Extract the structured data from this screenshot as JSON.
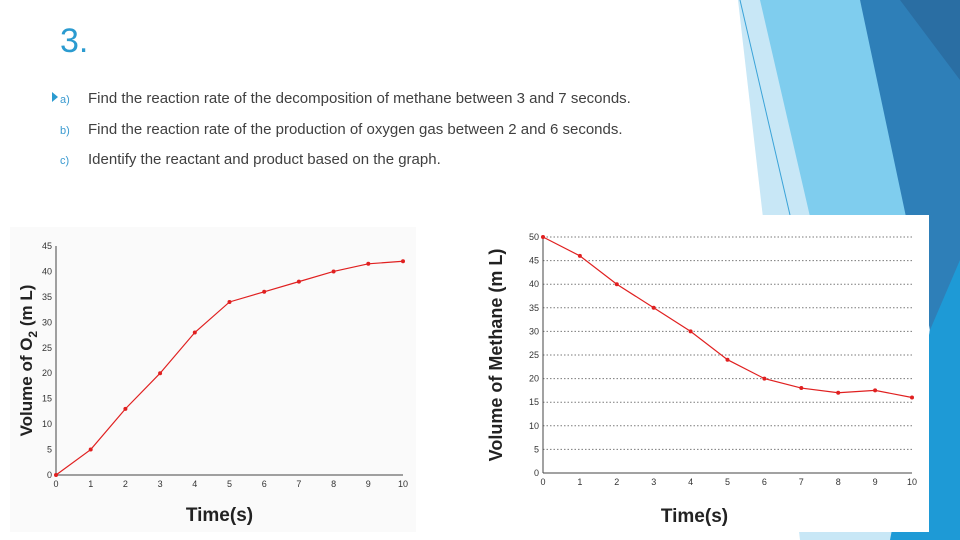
{
  "slide": {
    "title": "3.",
    "questions": [
      {
        "marker": "a)",
        "text": "Find the reaction rate of the decomposition of methane between 3 and 7 seconds."
      },
      {
        "marker": "b)",
        "text": "Find the reaction rate of the production of oxygen gas between 2 and 6 seconds."
      },
      {
        "marker": "c)",
        "text": "Identify the reactant and product based on the graph."
      }
    ]
  },
  "colors": {
    "accent": "#2b9bd0",
    "series": "#e02020",
    "grid": "#7a7a7a"
  },
  "chart_data": [
    {
      "type": "line",
      "xlabel": "Time(s)",
      "ylabel": "Volume of O2 (m L)",
      "ylabel_parts": {
        "before": "Volume of O",
        "sub": "2",
        "after": " (m L)"
      },
      "x": [
        0,
        1,
        2,
        3,
        4,
        5,
        6,
        7,
        8,
        9,
        10
      ],
      "values": [
        0,
        5,
        13,
        20,
        28,
        34,
        36,
        38,
        40,
        41.5,
        42
      ],
      "xlim": [
        0,
        10
      ],
      "ylim": [
        0,
        45
      ],
      "xticks": [
        "0",
        "1",
        "2",
        "3",
        "4",
        "5",
        "6",
        "7",
        "8",
        "9",
        "10"
      ],
      "yticks": [
        "0",
        "5",
        "10",
        "15",
        "20",
        "25",
        "30",
        "35",
        "40",
        "45"
      ],
      "grid": false
    },
    {
      "type": "line",
      "xlabel": "Time(s)",
      "ylabel": "Volume of Methane (m L)",
      "x": [
        0,
        1,
        2,
        3,
        4,
        5,
        6,
        7,
        8,
        9,
        10
      ],
      "values": [
        50,
        46,
        40,
        35,
        30,
        24,
        20,
        18,
        17,
        17.5,
        16
      ],
      "xlim": [
        0,
        10
      ],
      "ylim": [
        0,
        50
      ],
      "xticks": [
        "0",
        "1",
        "2",
        "3",
        "4",
        "5",
        "6",
        "7",
        "8",
        "9",
        "10"
      ],
      "yticks": [
        "0",
        "5",
        "10",
        "15",
        "20",
        "25",
        "30",
        "35",
        "40",
        "45",
        "50"
      ],
      "grid": true
    }
  ]
}
